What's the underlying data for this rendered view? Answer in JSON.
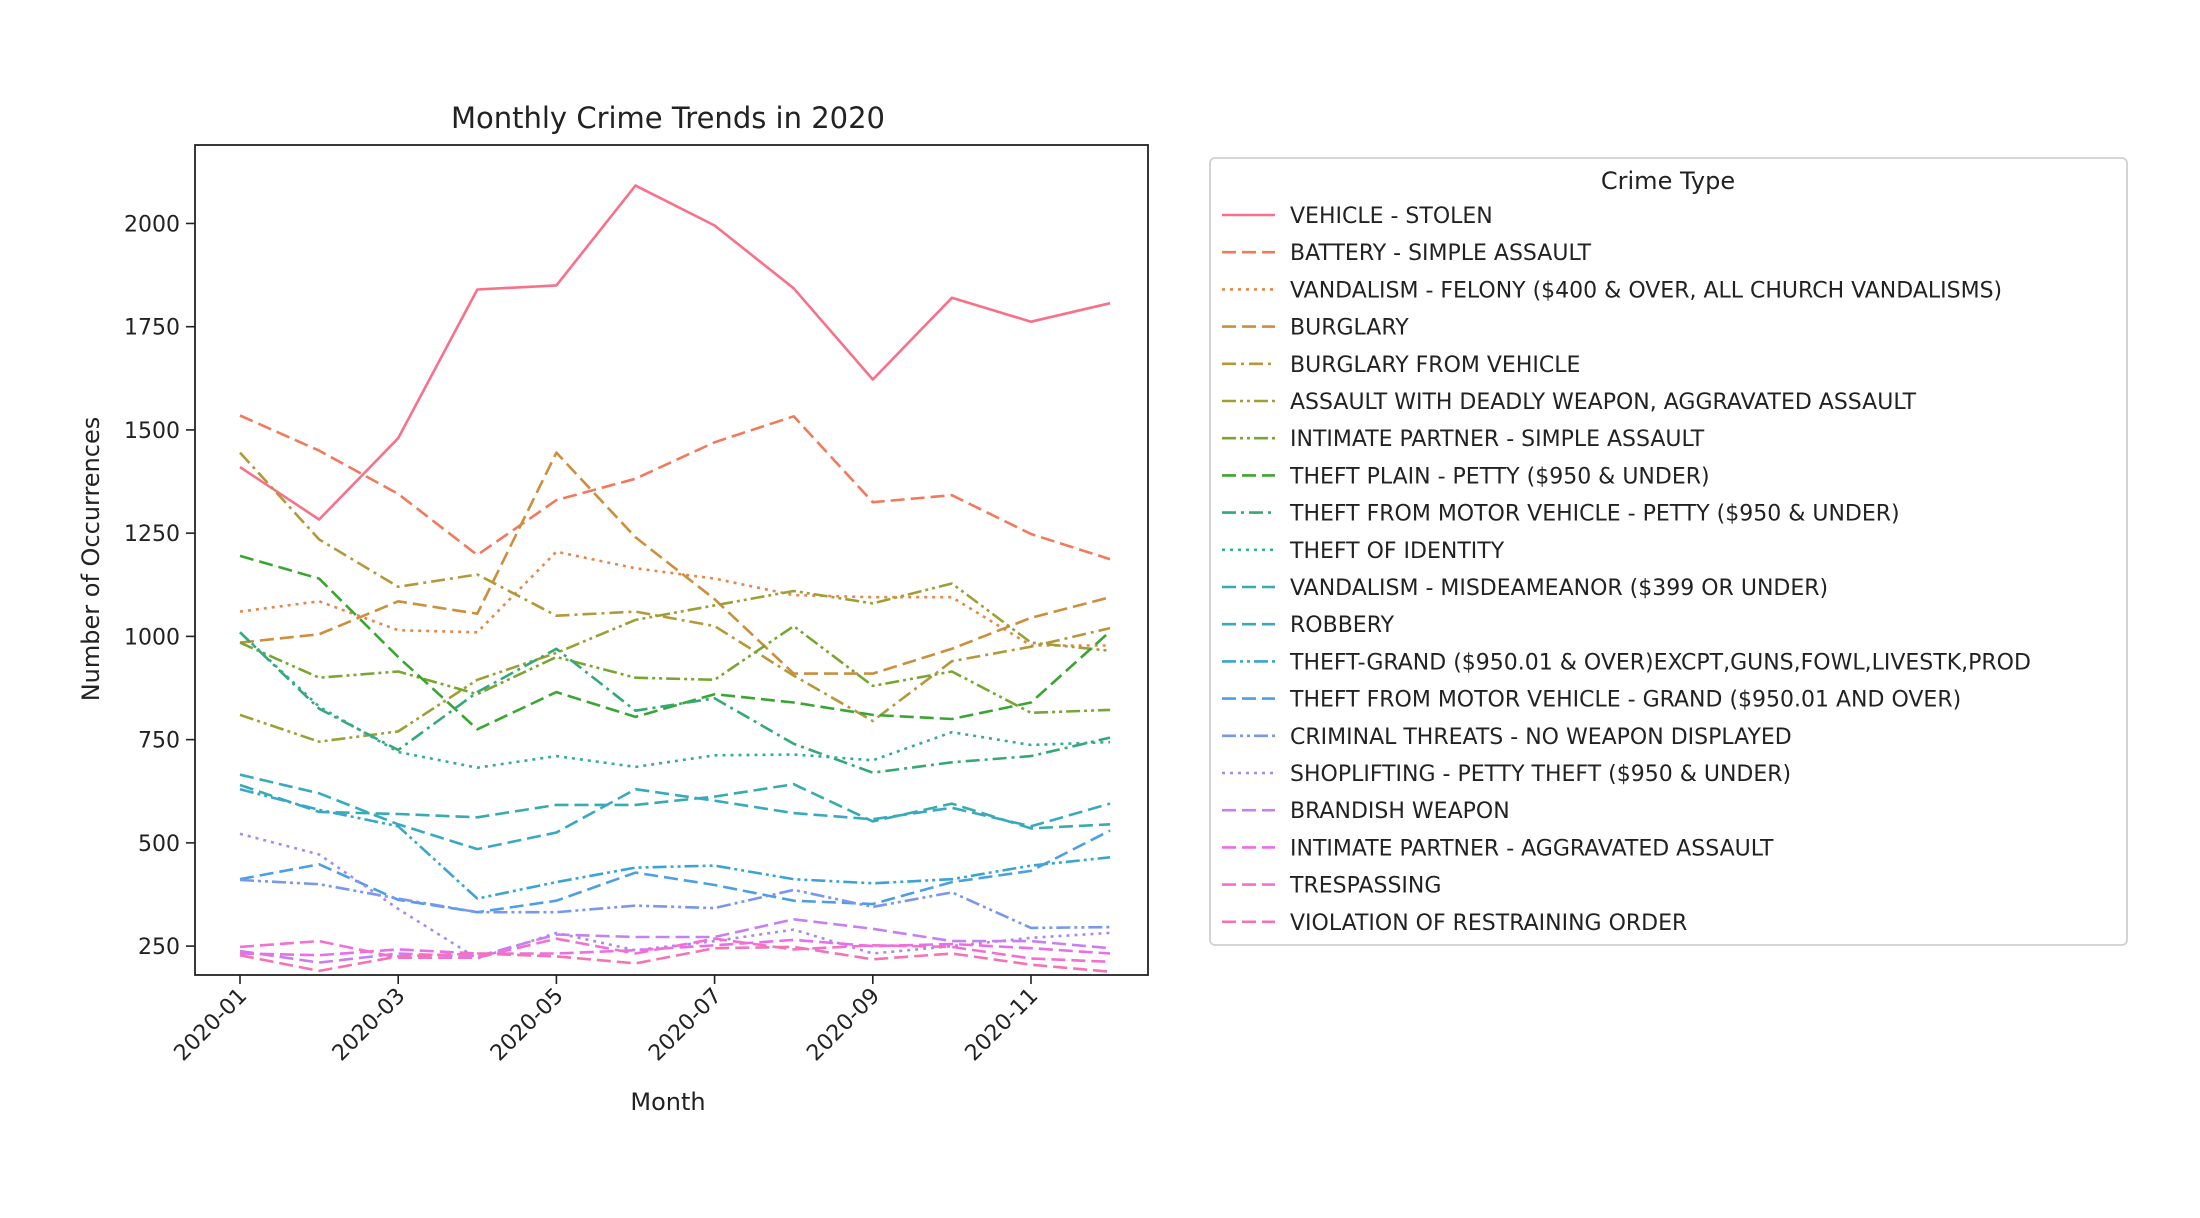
{
  "chart_data": {
    "type": "line",
    "title": "Monthly Crime Trends in 2020",
    "xlabel": "Month",
    "ylabel": "Number of Occurrences",
    "x": [
      "2020-01",
      "2020-02",
      "2020-03",
      "2020-04",
      "2020-05",
      "2020-06",
      "2020-07",
      "2020-08",
      "2020-09",
      "2020-10",
      "2020-11",
      "2020-12"
    ],
    "xticks": [
      "2020-01",
      "2020-03",
      "2020-05",
      "2020-07",
      "2020-09",
      "2020-11"
    ],
    "yticks": [
      250,
      500,
      750,
      1000,
      1250,
      1500,
      1750,
      2000
    ],
    "ylim": [
      180,
      2190
    ],
    "grid": false,
    "legend": {
      "title": "Crime Type",
      "position": "right"
    },
    "series": [
      {
        "name": "VEHICLE - STOLEN",
        "color": "#f77189",
        "dash": "solid",
        "values": [
          1410,
          1283,
          1480,
          1840,
          1850,
          2092,
          1995,
          1843,
          1622,
          1820,
          1762,
          1807
        ]
      },
      {
        "name": "BATTERY - SIMPLE ASSAULT",
        "color": "#f27a5c",
        "dash": "dashed",
        "values": [
          1535,
          1450,
          1345,
          1197,
          1330,
          1382,
          1470,
          1533,
          1325,
          1342,
          1248,
          1187
        ]
      },
      {
        "name": "VANDALISM - FELONY ($400 & OVER, ALL CHURCH VANDALISMS)",
        "color": "#e5874a",
        "dash": "dotted",
        "values": [
          1060,
          1085,
          1015,
          1010,
          1205,
          1165,
          1140,
          1100,
          1095,
          1095,
          978,
          978
        ]
      },
      {
        "name": "BURGLARY",
        "color": "#cb8f3e",
        "dash": "dashed",
        "values": [
          985,
          1005,
          1085,
          1055,
          1445,
          1240,
          1090,
          910,
          910,
          970,
          1045,
          1095
        ]
      },
      {
        "name": "BURGLARY FROM VEHICLE",
        "color": "#b49839",
        "dash": "dashdot",
        "values": [
          1445,
          1235,
          1120,
          1150,
          1050,
          1060,
          1025,
          905,
          795,
          940,
          975,
          1020
        ]
      },
      {
        "name": "ASSAULT WITH DEADLY WEAPON, AGGRAVATED ASSAULT",
        "color": "#9ca036",
        "dash": "dashdotdot",
        "values": [
          810,
          745,
          770,
          895,
          960,
          1040,
          1075,
          1110,
          1080,
          1128,
          985,
          965
        ]
      },
      {
        "name": "INTIMATE PARTNER - SIMPLE ASSAULT",
        "color": "#7aa532",
        "dash": "dashdotdot",
        "values": [
          985,
          900,
          915,
          860,
          950,
          900,
          895,
          1025,
          880,
          915,
          815,
          822
        ]
      },
      {
        "name": "THEFT PLAIN - PETTY ($950 & UNDER)",
        "color": "#3ba534",
        "dash": "dashed",
        "values": [
          1195,
          1140,
          950,
          775,
          865,
          805,
          860,
          840,
          810,
          800,
          840,
          1012
        ]
      },
      {
        "name": "THEFT FROM MOTOR VEHICLE - PETTY ($950 & UNDER)",
        "color": "#34a877",
        "dash": "dashdot",
        "values": [
          1010,
          825,
          725,
          865,
          970,
          820,
          850,
          740,
          670,
          695,
          710,
          755
        ]
      },
      {
        "name": "THEFT OF IDENTITY",
        "color": "#36ab98",
        "dash": "dotted",
        "values": [
          1010,
          830,
          720,
          682,
          710,
          684,
          712,
          714,
          700,
          768,
          737,
          744
        ]
      },
      {
        "name": "VANDALISM - MISDEAMEANOR ($399 OR UNDER)",
        "color": "#37abaf",
        "dash": "dashed",
        "values": [
          640,
          575,
          570,
          562,
          592,
          592,
          612,
          642,
          552,
          595,
          535,
          545
        ]
      },
      {
        "name": "ROBBERY",
        "color": "#38aac0",
        "dash": "dashed",
        "values": [
          665,
          620,
          545,
          485,
          525,
          630,
          602,
          572,
          557,
          585,
          540,
          595
        ]
      },
      {
        "name": "THEFT-GRAND ($950.01 & OVER)EXCPT,GUNS,FOWL,LIVESTK,PROD",
        "color": "#3aa5d3",
        "dash": "dashdotdot",
        "values": [
          630,
          580,
          540,
          365,
          405,
          440,
          445,
          412,
          402,
          412,
          445,
          465
        ]
      },
      {
        "name": "THEFT FROM MOTOR VEHICLE - GRAND ($950.01 AND OVER)",
        "color": "#4b9fe2",
        "dash": "dashed",
        "values": [
          412,
          448,
          362,
          332,
          360,
          428,
          398,
          360,
          352,
          405,
          432,
          530
        ]
      },
      {
        "name": "CRIMINAL THREATS - NO WEAPON DISPLAYED",
        "color": "#7997ec",
        "dash": "dashdotdot",
        "values": [
          410,
          400,
          365,
          332,
          332,
          348,
          342,
          386,
          345,
          380,
          294,
          296
        ]
      },
      {
        "name": "SHOPLIFTING - PETTY THEFT ($950 & UNDER)",
        "color": "#a38cf0",
        "dash": "dotted",
        "values": [
          522,
          472,
          340,
          220,
          282,
          240,
          262,
          290,
          232,
          250,
          270,
          282
        ]
      },
      {
        "name": "BRANDISH WEAPON",
        "color": "#c780f2",
        "dash": "dashed",
        "values": [
          238,
          210,
          232,
          225,
          278,
          272,
          272,
          315,
          292,
          262,
          262,
          245
        ]
      },
      {
        "name": "INTIMATE PARTNER - AGGRAVATED ASSAULT",
        "color": "#ea6ee9",
        "dash": "dashed",
        "values": [
          232,
          228,
          242,
          232,
          232,
          240,
          252,
          265,
          250,
          255,
          245,
          232
        ]
      },
      {
        "name": "TRESPASSING",
        "color": "#f46fd1",
        "dash": "dashed",
        "values": [
          248,
          262,
          222,
          222,
          268,
          232,
          268,
          242,
          252,
          248,
          220,
          212
        ]
      },
      {
        "name": "VIOLATION OF RESTRAINING ORDER",
        "color": "#f573b2",
        "dash": "dashed",
        "values": [
          228,
          190,
          225,
          232,
          225,
          208,
          245,
          248,
          218,
          232,
          205,
          188
        ]
      }
    ]
  }
}
